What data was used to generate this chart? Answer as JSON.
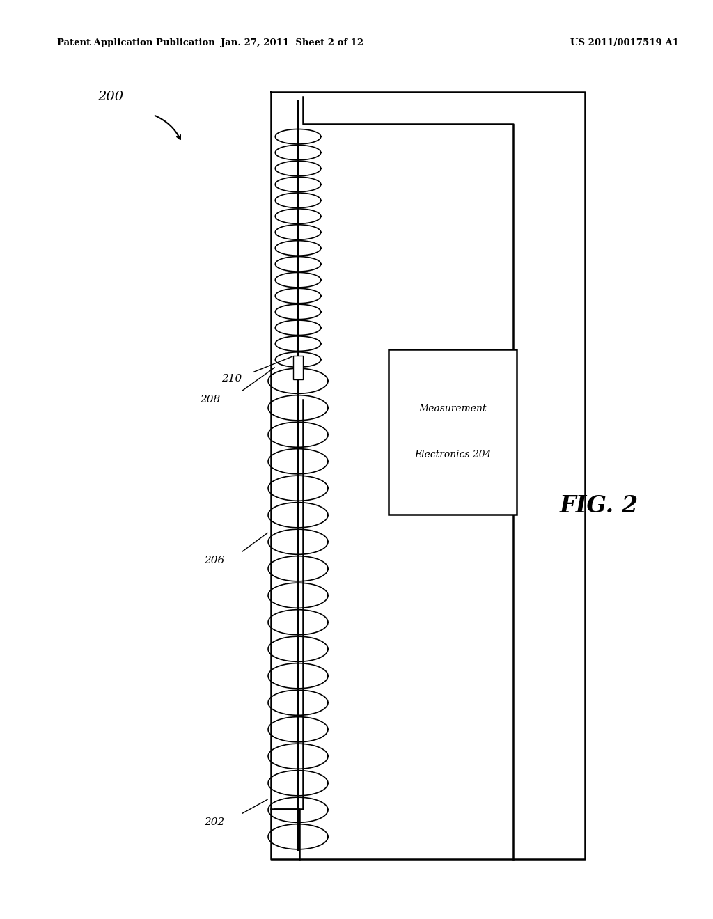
{
  "bg_color": "#ffffff",
  "line_color": "#000000",
  "header_left": "Patent Application Publication",
  "header_center": "Jan. 27, 2011  Sheet 2 of 12",
  "header_right": "US 2011/0017519 A1",
  "fig_label": "FIG. 2",
  "ref_200": "200",
  "ref_202": "202",
  "ref_206": "206",
  "ref_208": "208",
  "ref_210": "210",
  "ref_204_line1": "Measurement",
  "ref_204_line2": "Electronics 204"
}
